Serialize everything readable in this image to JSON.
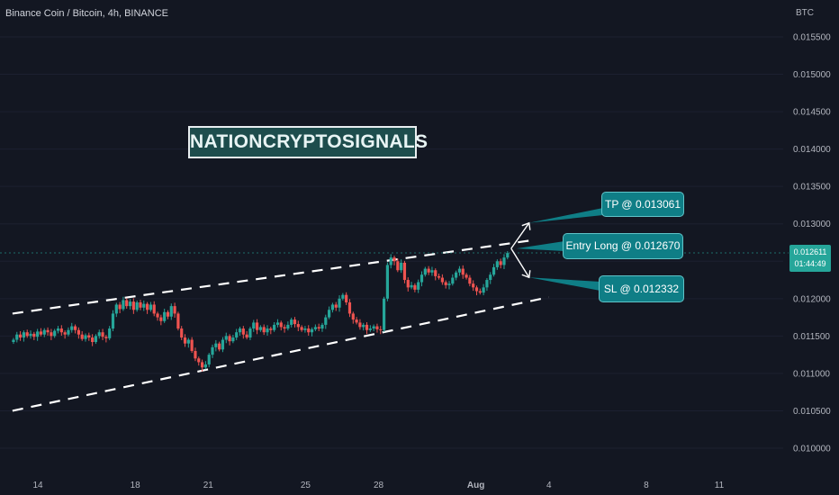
{
  "header": {
    "title": "Binance Coin / Bitcoin, 4h, BINANCE",
    "currency": "BTC"
  },
  "brand_label": "NATIONCRYPTOSIGNALS",
  "annotations": {
    "tp": "TP @ 0.013061",
    "entry": "Entry Long @ 0.012670",
    "sl": "SL @ 0.012332"
  },
  "current_price": {
    "price": "0.012611",
    "countdown": "01:44:49"
  },
  "colors": {
    "background": "#131722",
    "up": "#26a69a",
    "down": "#ef5350",
    "callout": "#0f7e86",
    "channel": "#ffffff"
  },
  "chart_data": {
    "type": "candlestick",
    "y_axis": {
      "ticks": [
        "0.015500",
        "0.015000",
        "0.014500",
        "0.014000",
        "0.013500",
        "0.013000",
        "0.012500",
        "0.012000",
        "0.011500",
        "0.011000",
        "0.010500",
        "0.010000"
      ],
      "ylim": [
        0.00982,
        0.0161
      ]
    },
    "x_axis": {
      "ticks": [
        "14",
        "18",
        "21",
        "25",
        "28",
        "Aug",
        "4",
        "8",
        "11"
      ]
    },
    "closes": [
      0.01145,
      0.01152,
      0.01148,
      0.01155,
      0.0115,
      0.01153,
      0.01149,
      0.01156,
      0.01152,
      0.01158,
      0.01155,
      0.0115,
      0.01157,
      0.0116,
      0.01155,
      0.01152,
      0.01158,
      0.01163,
      0.01158,
      0.01152,
      0.01146,
      0.01151,
      0.01148,
      0.01142,
      0.0115,
      0.01155,
      0.01149,
      0.01147,
      0.0116,
      0.0118,
      0.01192,
      0.01186,
      0.01198,
      0.0119,
      0.01196,
      0.01185,
      0.01195,
      0.01188,
      0.01193,
      0.01185,
      0.01192,
      0.0118,
      0.01175,
      0.0117,
      0.01182,
      0.01176,
      0.0119,
      0.0118,
      0.0116,
      0.01148,
      0.0114,
      0.01145,
      0.0113,
      0.0112,
      0.01115,
      0.01108,
      0.01112,
      0.01125,
      0.01135,
      0.0114,
      0.01132,
      0.01145,
      0.0115,
      0.01143,
      0.01148,
      0.01155,
      0.0116,
      0.01152,
      0.01148,
      0.0116,
      0.01168,
      0.01158,
      0.01162,
      0.01155,
      0.0116,
      0.01158,
      0.01165,
      0.01168,
      0.01162,
      0.0116,
      0.01165,
      0.01172,
      0.01166,
      0.01162,
      0.01158,
      0.0116,
      0.01155,
      0.01159,
      0.01162,
      0.0116,
      0.01165,
      0.01175,
      0.01185,
      0.01192,
      0.01188,
      0.012,
      0.01205,
      0.01195,
      0.0118,
      0.01172,
      0.01168,
      0.01162,
      0.01165,
      0.01158,
      0.0116,
      0.01163,
      0.01159,
      0.01158,
      0.012,
      0.01245,
      0.01255,
      0.0125,
      0.01238,
      0.01248,
      0.01225,
      0.01215,
      0.01218,
      0.01212,
      0.01222,
      0.01232,
      0.0124,
      0.01235,
      0.01238,
      0.0123,
      0.01228,
      0.01222,
      0.01218,
      0.0122,
      0.01228,
      0.01235,
      0.0124,
      0.01232,
      0.01228,
      0.0122,
      0.01215,
      0.0121,
      0.01208,
      0.01215,
      0.01225,
      0.01232,
      0.01242,
      0.0125,
      0.01245,
      0.01255,
      0.01261
    ],
    "channel": {
      "upper": [
        [
          "13",
          0.0118
        ],
        [
          "Aug 3",
          0.01278
        ]
      ],
      "lower": [
        [
          "13",
          0.0105
        ],
        [
          "Aug 4",
          0.01202
        ]
      ]
    },
    "levels": {
      "tp": 0.013061,
      "entry": 0.01267,
      "sl": 0.012332
    }
  }
}
